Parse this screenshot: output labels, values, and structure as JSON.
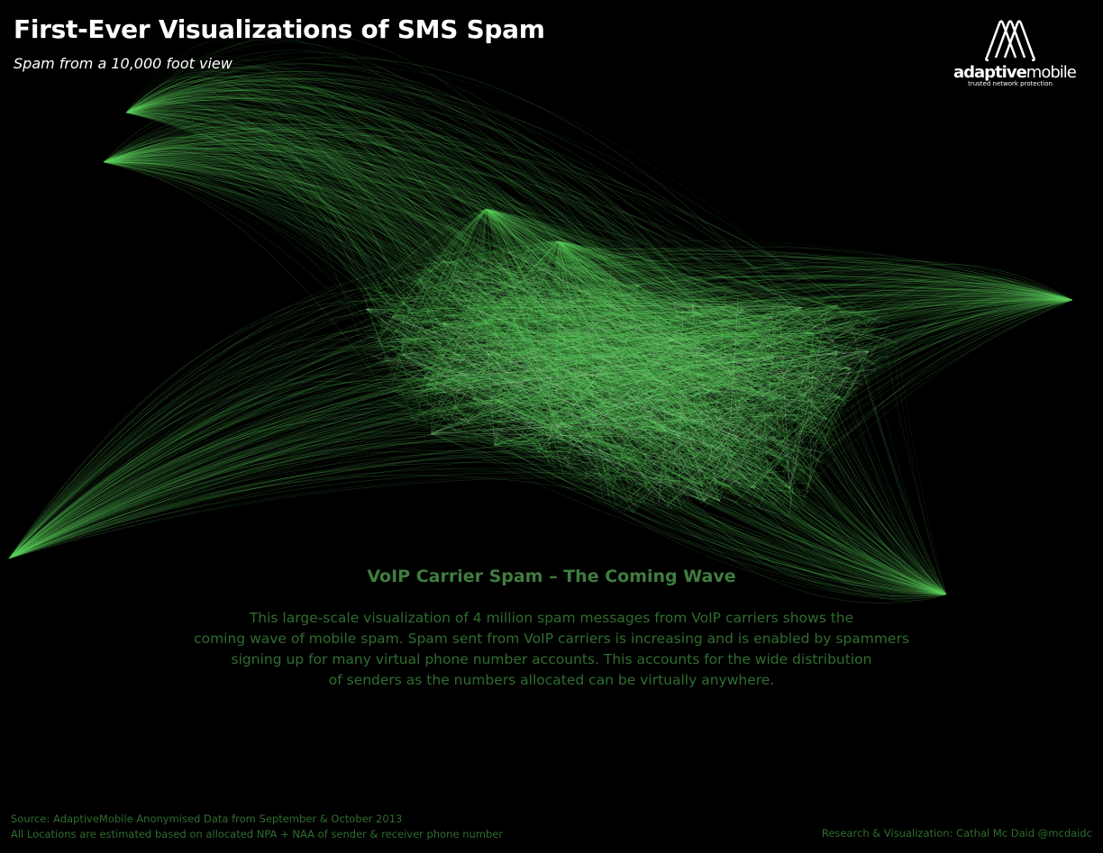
{
  "header": {
    "title": "First-Ever Visualizations of SMS Spam",
    "subtitle": "Spam from a 10,000 foot view"
  },
  "logo": {
    "brand_bold": "adaptive",
    "brand_light": "mobile",
    "tagline": "trusted network protection",
    "icon": "triple-arch-logo-icon"
  },
  "visualization": {
    "type": "spam message network map",
    "line_color": "#5fd35f",
    "highlight_color": "#e8ffe8"
  },
  "article": {
    "headline": "VoIP Carrier Spam – The Coming Wave",
    "lines": [
      "This large-scale visualization of 4 million spam messages from VoIP carriers shows the",
      "coming wave of mobile spam. Spam sent from VoIP carriers is increasing and is enabled by spammers",
      "signing up for many virtual phone number accounts. This accounts for the wide distribution",
      "of senders as the numbers allocated can be virtually anywhere."
    ]
  },
  "footer": {
    "source": "Source: AdaptiveMobile Anonymised Data from September & October 2013",
    "note": "All Locations are estimated based on allocated NPA + NAA of sender & receiver phone number",
    "credit": "Research & Visualization: Cathal Mc Daid @mcdaidc"
  },
  "colors": {
    "background": "#000000",
    "title": "#ffffff",
    "headline": "#3f7d3f",
    "body": "#2f6d2f"
  }
}
